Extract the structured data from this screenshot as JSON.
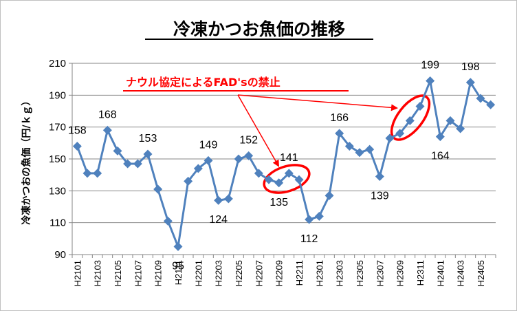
{
  "chart_data": {
    "type": "line",
    "title": "冷凍かつお魚価の推移",
    "ylabel": "冷凍かつおの魚価（円/ｋｇ）",
    "xlabel": "",
    "ylim": [
      90,
      210
    ],
    "yticks": [
      90,
      110,
      130,
      150,
      170,
      190,
      210
    ],
    "grid": "horizontal",
    "legend": "none",
    "x": [
      "H2101",
      "H2102",
      "H2103",
      "H2104",
      "H2105",
      "H2106",
      "H2107",
      "H2108",
      "H2109",
      "H2110",
      "H2111",
      "H2112",
      "H2201",
      "H2202",
      "H2203",
      "H2204",
      "H2205",
      "H2206",
      "H2207",
      "H2208",
      "H2209",
      "H2210",
      "H2211",
      "H2212",
      "H2301",
      "H2302",
      "H2303",
      "H2304",
      "H2305",
      "H2306",
      "H2307",
      "H2308",
      "H2309",
      "H2310",
      "H2311",
      "H2312",
      "H2401",
      "H2402",
      "H2403",
      "H2404",
      "H2405",
      "H2406"
    ],
    "x_tick_labels": [
      "H2101",
      "H2103",
      "H2105",
      "H2107",
      "H2109",
      "H2111",
      "H2201",
      "H2203",
      "H2205",
      "H2207",
      "H2209",
      "H2211",
      "H2301",
      "H2303",
      "H2305",
      "H2307",
      "H2309",
      "H2311",
      "H2401",
      "H2403",
      "H2405"
    ],
    "series": [
      {
        "values": [
          158,
          141,
          141,
          168,
          155,
          147,
          147,
          153,
          131,
          111,
          95,
          136,
          144,
          149,
          124,
          125,
          150,
          152,
          141,
          137,
          135,
          141,
          137,
          112,
          114,
          127,
          166,
          158,
          154,
          156,
          139,
          163,
          166,
          174,
          183,
          199,
          164,
          174,
          169,
          198,
          188,
          184
        ]
      }
    ],
    "data_labels": [
      {
        "index": 0,
        "text": "158"
      },
      {
        "index": 3,
        "text": "168"
      },
      {
        "index": 7,
        "text": "153"
      },
      {
        "index": 10,
        "text": "95"
      },
      {
        "index": 13,
        "text": "149"
      },
      {
        "index": 14,
        "text": "124"
      },
      {
        "index": 17,
        "text": "152"
      },
      {
        "index": 20,
        "text": "135"
      },
      {
        "index": 21,
        "text": "141"
      },
      {
        "index": 23,
        "text": "112"
      },
      {
        "index": 26,
        "text": "166"
      },
      {
        "index": 30,
        "text": "139"
      },
      {
        "index": 35,
        "text": "199"
      },
      {
        "index": 36,
        "text": "164"
      },
      {
        "index": 39,
        "text": "198"
      }
    ],
    "annotation": {
      "text": "ナウル協定によるFAD'sの禁止",
      "color": "#ff0000"
    },
    "colors": {
      "line": "#4f81bd",
      "grid": "#868686",
      "annotation": "#ff0000"
    }
  }
}
